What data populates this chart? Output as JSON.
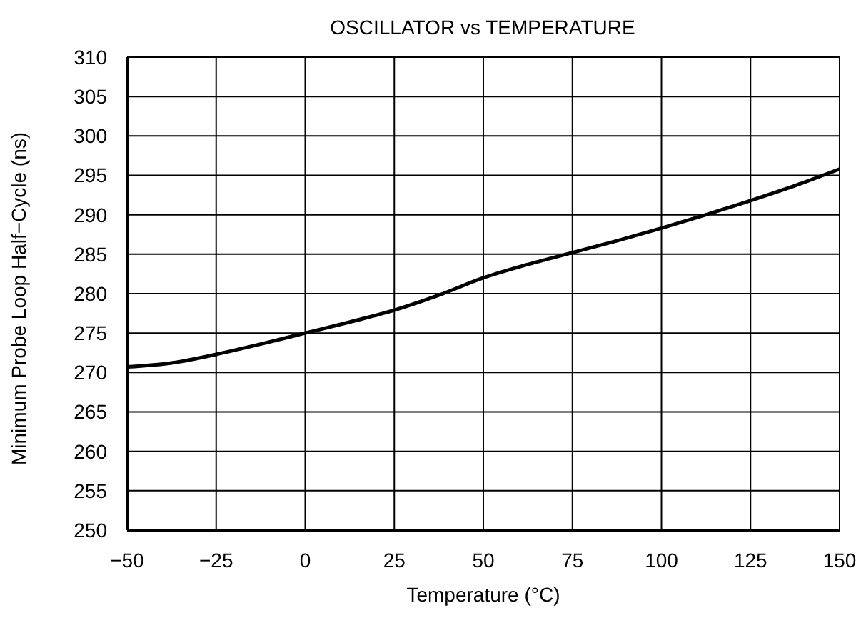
{
  "chart_data": {
    "type": "line",
    "title": "OSCILLATOR vs TEMPERATURE",
    "xlabel": "Temperature (°C)",
    "ylabel": "Minimum Probe Loop Half−Cycle (ns)",
    "x": [
      -50,
      -37.5,
      -25,
      -12.5,
      0,
      12.5,
      25,
      37.5,
      50,
      62.5,
      75,
      87.5,
      100,
      112.5,
      125,
      137.5,
      150
    ],
    "series": [
      {
        "color": "#000000",
        "values": [
          270.7,
          271.2,
          272.3,
          273.6,
          275,
          276.4,
          277.9,
          279.8,
          282,
          283.7,
          285.2,
          286.7,
          288.3,
          290,
          291.8,
          293.7,
          295.8
        ]
      }
    ],
    "xlim": [
      -50,
      150
    ],
    "xticks": [
      {
        "value": -50,
        "label": "−50"
      },
      {
        "value": -25,
        "label": "−25"
      },
      0,
      25,
      50,
      75,
      100,
      125,
      150
    ],
    "ylim": [
      250,
      310
    ],
    "yticks": [
      250,
      255,
      260,
      265,
      270,
      275,
      280,
      285,
      290,
      295,
      300,
      305,
      310
    ],
    "grid": true,
    "legend": false,
    "marker": "none",
    "line_style": "solid"
  }
}
